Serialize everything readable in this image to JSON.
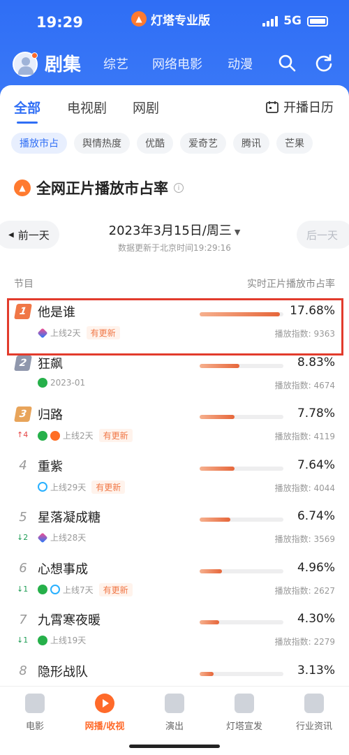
{
  "status": {
    "time": "19:29",
    "network": "5G",
    "app_name": "灯塔专业版"
  },
  "nav": {
    "main_tab": "剧集",
    "tabs": [
      "综艺",
      "网络电影",
      "动漫"
    ],
    "icons": [
      "search-icon",
      "refresh-icon"
    ]
  },
  "subtabs": {
    "items": [
      "全部",
      "电视剧",
      "网剧"
    ],
    "active": 0,
    "calendar_label": "开播日历"
  },
  "filters": {
    "items": [
      "播放市占",
      "舆情热度",
      "优酷",
      "爱奇艺",
      "腾讯",
      "芒果"
    ],
    "active": 0
  },
  "section": {
    "title": "全网正片播放市占率"
  },
  "date_nav": {
    "prev": "前一天",
    "next": "后一天",
    "date": "2023年3月15日/周三",
    "updated": "数据更新于北京时间19:29:16"
  },
  "columns": {
    "left": "节目",
    "right": "实时正片播放市占率"
  },
  "rows": [
    {
      "rank": "1",
      "title": "他是谁",
      "platforms": [
        "tx"
      ],
      "meta": "上线2天",
      "tag": "有更新",
      "change": "",
      "share": "17.68%",
      "share_value": 17.68,
      "index": "播放指数: 9363",
      "highlight": true
    },
    {
      "rank": "2",
      "title": "狂飙",
      "platforms": [
        "iq"
      ],
      "meta": "2023-01",
      "tag": "",
      "change": "",
      "share": "8.83%",
      "share_value": 8.83,
      "index": "播放指数: 4674"
    },
    {
      "rank": "3",
      "title": "归路",
      "platforms": [
        "iq",
        "mg"
      ],
      "meta": "上线2天",
      "tag": "有更新",
      "change": "↑4",
      "change_dir": "up",
      "share": "7.78%",
      "share_value": 7.78,
      "index": "播放指数: 4119"
    },
    {
      "rank": "4",
      "title": "重紫",
      "platforms": [
        "yk"
      ],
      "meta": "上线29天",
      "tag": "有更新",
      "change": "",
      "share": "7.64%",
      "share_value": 7.64,
      "index": "播放指数: 4044"
    },
    {
      "rank": "5",
      "title": "星落凝成糖",
      "platforms": [
        "tx"
      ],
      "meta": "上线28天",
      "tag": "",
      "change": "↓2",
      "change_dir": "down",
      "share": "6.74%",
      "share_value": 6.74,
      "index": "播放指数: 3569"
    },
    {
      "rank": "6",
      "title": "心想事成",
      "platforms": [
        "iq",
        "yk"
      ],
      "meta": "上线7天",
      "tag": "有更新",
      "change": "↓1",
      "change_dir": "down",
      "share": "4.96%",
      "share_value": 4.96,
      "index": "播放指数: 2627"
    },
    {
      "rank": "7",
      "title": "九霄寒夜暖",
      "platforms": [
        "iq"
      ],
      "meta": "上线19天",
      "tag": "",
      "change": "↓1",
      "change_dir": "down",
      "share": "4.30%",
      "share_value": 4.3,
      "index": "播放指数: 2279"
    },
    {
      "rank": "8",
      "title": "隐形战队",
      "platforms": [],
      "meta": "",
      "tag": "",
      "change": "",
      "share": "3.13%",
      "share_value": 3.13,
      "index": ""
    }
  ],
  "bottom_nav": {
    "items": [
      {
        "label": "电影",
        "icon": "movie-icon"
      },
      {
        "label": "网播/收视",
        "icon": "play-icon"
      },
      {
        "label": "演出",
        "icon": "microphone-icon"
      },
      {
        "label": "灯塔宣发",
        "icon": "lighthouse-icon"
      },
      {
        "label": "行业资讯",
        "icon": "news-icon"
      }
    ],
    "active": 1
  },
  "colors": {
    "brand_blue": "#2f6ef5",
    "accent_orange": "#f07746",
    "highlight_red": "#e23b2c"
  }
}
